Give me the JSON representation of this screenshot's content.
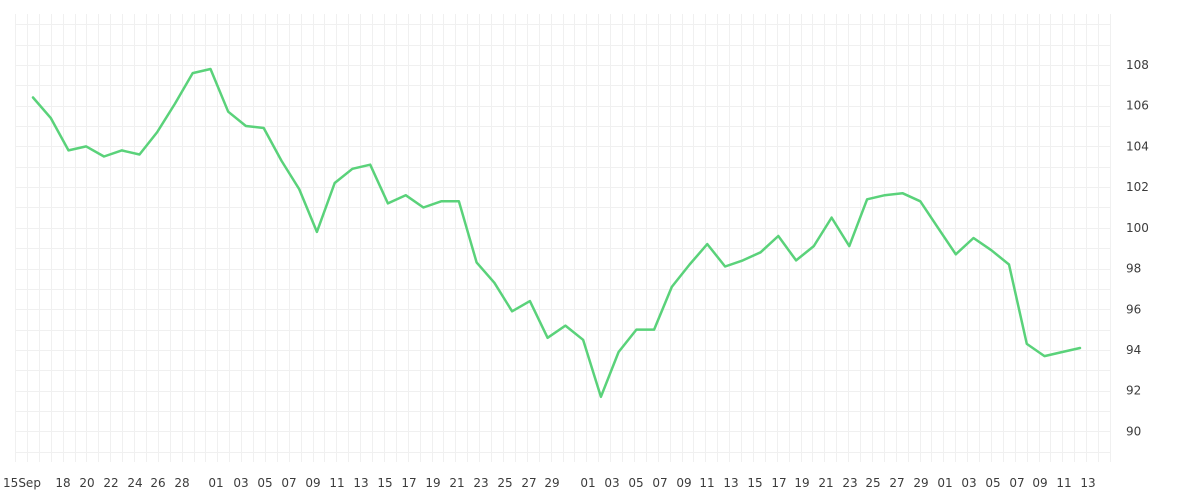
{
  "chart_data": {
    "type": "line",
    "grid": true,
    "legend": false,
    "y_axis_position": "right",
    "ylim": [
      88.5,
      110.5
    ],
    "y_ticks": [
      90,
      92,
      94,
      96,
      98,
      100,
      102,
      104,
      106,
      108
    ],
    "x_tick_labels": [
      "15Sep",
      "18",
      "20",
      "22",
      "24",
      "26",
      "28",
      "01",
      "03",
      "05",
      "07",
      "09",
      "11",
      "13",
      "15",
      "17",
      "19",
      "21",
      "23",
      "25",
      "27",
      "29",
      "01",
      "03",
      "05",
      "07",
      "09",
      "11",
      "13",
      "15",
      "17",
      "19",
      "21",
      "23",
      "25",
      "27",
      "29",
      "01",
      "03",
      "05",
      "07",
      "09",
      "11",
      "13"
    ],
    "series": [
      {
        "color": "#5ad27a",
        "values": [
          106.4,
          105.4,
          103.8,
          104.0,
          103.5,
          103.8,
          103.6,
          104.7,
          106.1,
          107.6,
          107.8,
          105.7,
          105.0,
          104.9,
          103.3,
          101.9,
          99.8,
          102.2,
          102.9,
          103.1,
          101.2,
          101.6,
          101.0,
          101.3,
          101.3,
          98.3,
          97.3,
          95.9,
          96.4,
          94.6,
          95.2,
          94.5,
          91.7,
          93.9,
          95.0,
          95.0,
          97.1,
          98.2,
          99.2,
          98.1,
          98.4,
          98.8,
          99.6,
          98.4,
          99.1,
          100.5,
          99.1,
          101.4,
          101.6,
          101.7,
          101.3,
          100.0,
          98.7,
          99.5,
          98.9,
          98.2,
          94.3,
          93.7,
          93.9,
          94.1
        ]
      }
    ]
  }
}
